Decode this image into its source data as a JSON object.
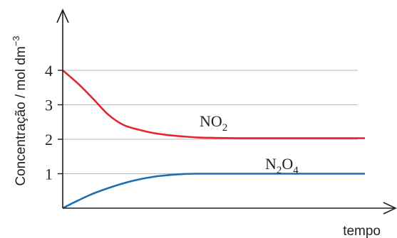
{
  "chart_data": {
    "type": "line",
    "title": "",
    "xlabel": "tempo",
    "ylabel": {
      "text": "Concentração / mol dm",
      "superscript": "−3"
    },
    "ylim": [
      0,
      4.5
    ],
    "yticks": [
      1,
      2,
      3,
      4
    ],
    "grid": true,
    "series": [
      {
        "name": "NO2",
        "label": {
          "base1": "NO",
          "sub1": "2",
          "base2": "",
          "sub2": ""
        },
        "color": "#e4252d",
        "points": [
          [
            0,
            4.0
          ],
          [
            0.05,
            3.62
          ],
          [
            0.1,
            3.18
          ],
          [
            0.15,
            2.72
          ],
          [
            0.2,
            2.42
          ],
          [
            0.25,
            2.28
          ],
          [
            0.3,
            2.18
          ],
          [
            0.35,
            2.12
          ],
          [
            0.4,
            2.08
          ],
          [
            0.45,
            2.05
          ],
          [
            0.5,
            2.04
          ],
          [
            0.6,
            2.03
          ],
          [
            0.8,
            2.03
          ],
          [
            1.0,
            2.03
          ]
        ]
      },
      {
        "name": "N2O4",
        "label": {
          "base1": "N",
          "sub1": "2",
          "base2": "O",
          "sub2": "4"
        },
        "color": "#1c6fb2",
        "points": [
          [
            0,
            0.0
          ],
          [
            0.05,
            0.22
          ],
          [
            0.1,
            0.42
          ],
          [
            0.15,
            0.58
          ],
          [
            0.2,
            0.72
          ],
          [
            0.25,
            0.83
          ],
          [
            0.3,
            0.91
          ],
          [
            0.35,
            0.96
          ],
          [
            0.4,
            0.99
          ],
          [
            0.45,
            1.0
          ],
          [
            0.6,
            1.0
          ],
          [
            0.8,
            1.0
          ],
          [
            1.0,
            1.0
          ]
        ]
      }
    ],
    "colors": {
      "axis": "#231f20",
      "grid": "#b5b5b5",
      "text": "#231f20"
    }
  }
}
